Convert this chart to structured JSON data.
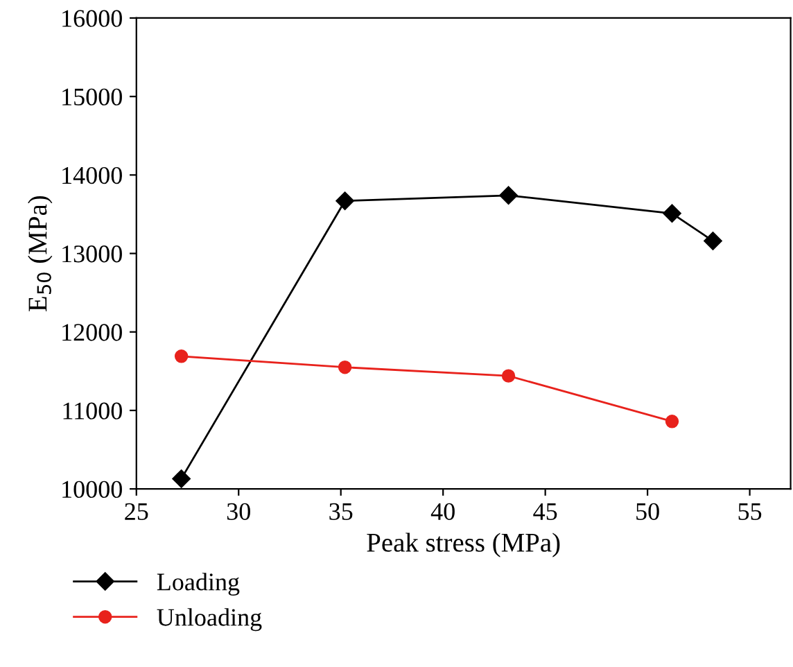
{
  "chart_data": {
    "type": "line",
    "xlabel": "Peak stress (MPa)",
    "ylabel": "E$_{50}$ (MPa)",
    "xlim": [
      25,
      57
    ],
    "ylim": [
      10000,
      16000
    ],
    "xticks": [
      25,
      30,
      35,
      40,
      45,
      50,
      55
    ],
    "yticks": [
      10000,
      11000,
      12000,
      13000,
      14000,
      15000,
      16000
    ],
    "legend": "bottom",
    "grid": false,
    "series": [
      {
        "name": "Loading",
        "color": "#000000",
        "marker": "diamond",
        "x": [
          27.2,
          35.2,
          43.2,
          51.2,
          53.2
        ],
        "values": [
          10130,
          13670,
          13740,
          13510,
          13160
        ]
      },
      {
        "name": "Unloading",
        "color": "#e8221c",
        "marker": "circle",
        "x": [
          27.2,
          35.2,
          43.2,
          51.2
        ],
        "values": [
          11690,
          11550,
          11440,
          10860
        ]
      }
    ]
  }
}
